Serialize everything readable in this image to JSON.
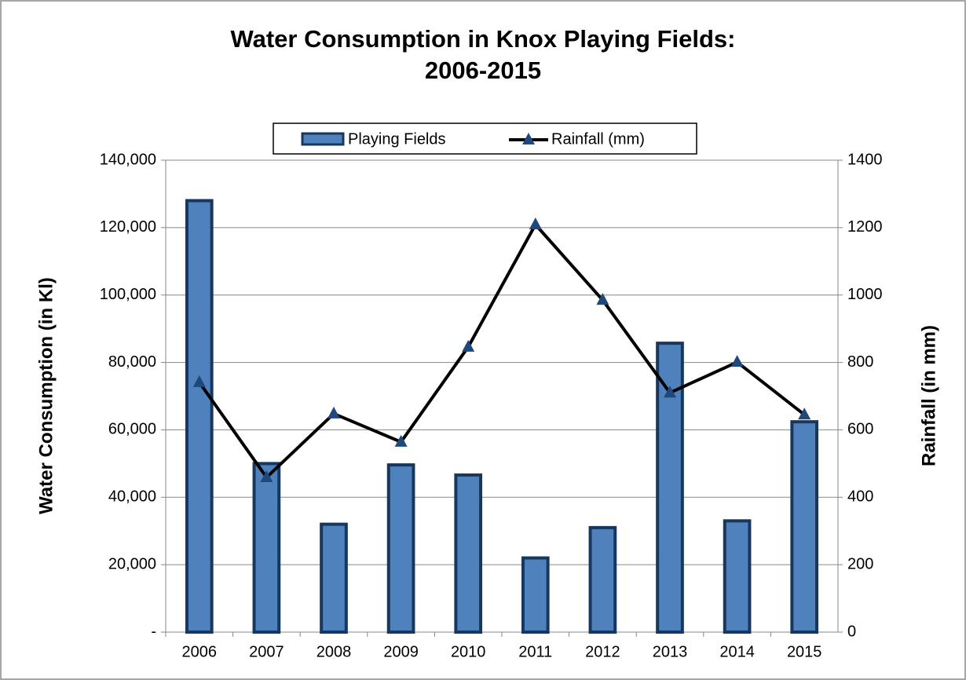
{
  "chart_data": {
    "type": "bar_line",
    "title": "Water Consumption in Knox Playing Fields:",
    "subtitle": "2006-2015",
    "y_label": "Water Consumption (in Kl)",
    "y2_label": "Rainfall (in mm)",
    "categories": [
      "2006",
      "2007",
      "2008",
      "2009",
      "2010",
      "2011",
      "2012",
      "2013",
      "2014",
      "2015"
    ],
    "series": [
      {
        "name": "Playing Fields",
        "type": "bar",
        "color": "#4f81bd",
        "edge_color": "#17375e",
        "values": [
          128000,
          50000,
          32000,
          49600,
          46600,
          22000,
          31000,
          85700,
          33000,
          62400
        ]
      },
      {
        "name": "Rainfall (mm)",
        "type": "line",
        "axis": "y2",
        "color": "#000000",
        "marker_color": "#1f497d",
        "values": [
          741,
          459,
          648,
          564,
          846,
          1209,
          985,
          710,
          801,
          645
        ]
      }
    ],
    "ylim": [
      0,
      140000
    ],
    "yticks": [
      {
        "value": 0,
        "label": "-"
      },
      {
        "value": 20000,
        "label": "20,000"
      },
      {
        "value": 40000,
        "label": "40,000"
      },
      {
        "value": 60000,
        "label": "60,000"
      },
      {
        "value": 80000,
        "label": "80,000"
      },
      {
        "value": 100000,
        "label": "100,000"
      },
      {
        "value": 120000,
        "label": "120,000"
      },
      {
        "value": 140000,
        "label": "140,000"
      }
    ],
    "y2lim": [
      0,
      1400
    ],
    "y2ticks": [
      0,
      200,
      400,
      600,
      800,
      1000,
      1200,
      1400
    ],
    "grid": true,
    "legend": "top"
  }
}
